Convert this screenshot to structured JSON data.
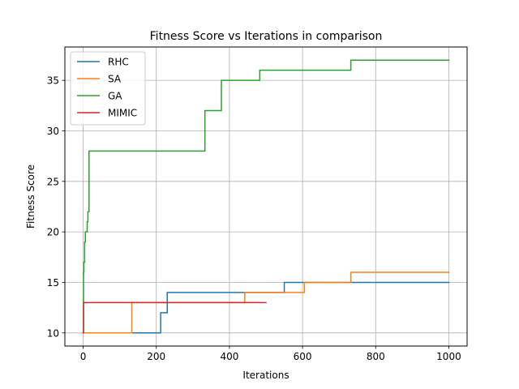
{
  "chart_data": {
    "type": "line",
    "title": "Fitness Score vs Iterations in comparison",
    "xlabel": "Iterations",
    "ylabel": "Fitness Score",
    "xlim": [
      -50,
      1050
    ],
    "ylim": [
      8.7,
      38.3
    ],
    "xticks": [
      0,
      200,
      400,
      600,
      800,
      1000
    ],
    "yticks": [
      10,
      15,
      20,
      25,
      30,
      35
    ],
    "grid": true,
    "legend_position": "upper-left",
    "series": [
      {
        "name": "RHC",
        "color": "#1f77b4",
        "x": [
          0,
          212,
          212,
          230,
          230,
          550,
          550,
          1000
        ],
        "y": [
          10,
          10,
          12,
          12,
          14,
          14,
          15,
          15
        ]
      },
      {
        "name": "SA",
        "color": "#ff7f0e",
        "x": [
          0,
          133,
          133,
          442,
          442,
          605,
          605,
          732,
          732,
          1000
        ],
        "y": [
          10,
          10,
          13,
          13,
          14,
          14,
          15,
          15,
          16,
          16
        ]
      },
      {
        "name": "GA",
        "color": "#2ca02c",
        "x": [
          0,
          1,
          1,
          2,
          2,
          4,
          4,
          6,
          6,
          11,
          11,
          13,
          13,
          16,
          16,
          333,
          333,
          378,
          378,
          483,
          483,
          732,
          732,
          1000
        ],
        "y": [
          10,
          10,
          16,
          16,
          17,
          17,
          19,
          19,
          20,
          20,
          21,
          21,
          22,
          22,
          28,
          28,
          32,
          32,
          35,
          35,
          36,
          36,
          37,
          37
        ]
      },
      {
        "name": "MIMIC",
        "color": "#d62728",
        "x": [
          0,
          1,
          1,
          500
        ],
        "y": [
          10,
          10,
          13,
          13
        ]
      }
    ]
  }
}
